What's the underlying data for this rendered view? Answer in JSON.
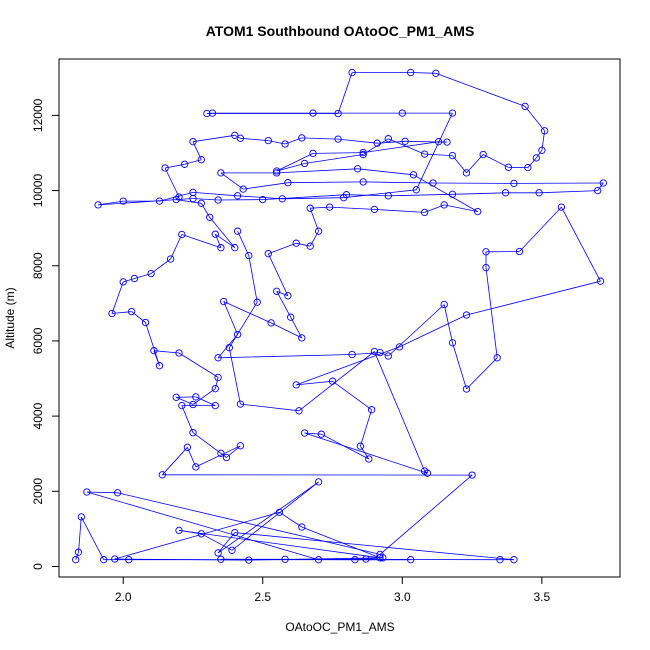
{
  "chart_data": {
    "type": "line",
    "title": "ATOM1 Southbound OAtoOC_PM1_AMS",
    "xlabel": "OAtoOC_PM1_AMS",
    "ylabel": "Altitude (m)",
    "xlim": [
      1.77,
      3.78
    ],
    "ylim": [
      -280,
      13500
    ],
    "x_ticks": [
      2.0,
      2.5,
      3.0,
      3.5
    ],
    "x_tick_labels": [
      "2.0",
      "2.5",
      "3.0",
      "3.5"
    ],
    "y_ticks": [
      0,
      2000,
      4000,
      6000,
      8000,
      10000,
      12000
    ],
    "y_tick_labels": [
      "0",
      "2000",
      "4000",
      "6000",
      "8000",
      "10000",
      "12000"
    ],
    "grid": false,
    "legend": "none",
    "series_color": "#0000ff",
    "marker": "open-circle",
    "series": [
      {
        "points": [
          [
            1.83,
            180
          ],
          [
            1.84,
            380
          ],
          [
            1.85,
            1320
          ],
          [
            1.93,
            180
          ],
          [
            2.02,
            180
          ],
          [
            3.03,
            180
          ],
          [
            2.83,
            180
          ],
          [
            2.35,
            190
          ],
          [
            2.58,
            190
          ],
          [
            3.35,
            180
          ],
          [
            3.4,
            180
          ],
          [
            2.4,
            900
          ],
          [
            2.34,
            360
          ],
          [
            2.7,
            2250
          ],
          [
            2.39,
            430
          ],
          [
            2.28,
            870
          ],
          [
            2.2,
            960
          ],
          [
            2.92,
            230
          ],
          [
            2.64,
            1050
          ],
          [
            2.56,
            1440
          ],
          [
            1.97,
            200
          ],
          [
            2.45,
            170
          ],
          [
            2.93,
            230
          ],
          [
            2.87,
            200
          ],
          [
            2.7,
            180
          ],
          [
            1.87,
            1980
          ],
          [
            1.98,
            1960
          ],
          [
            2.92,
            320
          ],
          [
            3.25,
            2430
          ],
          [
            2.14,
            2440
          ],
          [
            2.23,
            3170
          ],
          [
            2.26,
            2650
          ],
          [
            2.42,
            3210
          ],
          [
            2.37,
            2900
          ],
          [
            2.35,
            3010
          ],
          [
            2.25,
            3560
          ],
          [
            2.21,
            4280
          ],
          [
            2.33,
            4280
          ],
          [
            2.26,
            4510
          ],
          [
            2.19,
            4500
          ],
          [
            2.25,
            4310
          ],
          [
            2.33,
            4730
          ],
          [
            2.34,
            5030
          ],
          [
            2.2,
            5680
          ],
          [
            2.11,
            5740
          ],
          [
            2.13,
            5340
          ],
          [
            2.08,
            6490
          ],
          [
            2.03,
            6780
          ],
          [
            1.96,
            6730
          ],
          [
            2.0,
            7570
          ],
          [
            2.04,
            7660
          ],
          [
            2.1,
            7790
          ],
          [
            2.17,
            8180
          ],
          [
            2.21,
            8830
          ],
          [
            2.35,
            8480
          ],
          [
            2.33,
            8840
          ],
          [
            2.4,
            8480
          ],
          [
            2.31,
            9290
          ],
          [
            2.28,
            9660
          ],
          [
            2.19,
            9760
          ],
          [
            2.2,
            9830
          ],
          [
            2.15,
            10600
          ],
          [
            2.22,
            10700
          ],
          [
            2.28,
            10820
          ],
          [
            2.25,
            11300
          ],
          [
            2.4,
            11470
          ],
          [
            2.42,
            11390
          ],
          [
            2.52,
            11330
          ],
          [
            2.58,
            11240
          ],
          [
            2.64,
            11400
          ],
          [
            2.77,
            11370
          ],
          [
            2.91,
            11260
          ],
          [
            3.01,
            11310
          ],
          [
            3.16,
            11290
          ],
          [
            3.13,
            11300
          ],
          [
            2.86,
            11010
          ],
          [
            2.68,
            10990
          ],
          [
            2.55,
            10520
          ],
          [
            2.65,
            10720
          ],
          [
            2.86,
            10960
          ],
          [
            2.95,
            11380
          ],
          [
            3.08,
            10970
          ],
          [
            3.18,
            10930
          ],
          [
            3.23,
            10470
          ],
          [
            3.29,
            10960
          ],
          [
            3.38,
            10620
          ],
          [
            3.45,
            10610
          ],
          [
            3.48,
            10870
          ],
          [
            3.5,
            11070
          ],
          [
            3.51,
            11590
          ],
          [
            3.44,
            12240
          ],
          [
            3.12,
            13120
          ],
          [
            3.03,
            13140
          ],
          [
            2.82,
            13140
          ],
          [
            2.77,
            12050
          ],
          [
            2.3,
            12050
          ],
          [
            2.32,
            12060
          ],
          [
            2.68,
            12060
          ],
          [
            3.0,
            12060
          ],
          [
            3.18,
            12060
          ],
          [
            3.05,
            10020
          ],
          [
            2.79,
            9810
          ],
          [
            2.57,
            9780
          ],
          [
            2.41,
            9860
          ],
          [
            2.25,
            9950
          ],
          [
            2.13,
            9720
          ],
          [
            2.0,
            9720
          ],
          [
            1.91,
            9620
          ],
          [
            2.25,
            9790
          ],
          [
            2.34,
            9750
          ],
          [
            2.5,
            9760
          ],
          [
            2.8,
            9890
          ],
          [
            2.95,
            9860
          ],
          [
            3.18,
            9900
          ],
          [
            3.37,
            9940
          ],
          [
            3.49,
            9940
          ],
          [
            3.7,
            10000
          ],
          [
            3.72,
            10200
          ],
          [
            3.4,
            10190
          ],
          [
            3.11,
            10200
          ],
          [
            2.86,
            10230
          ],
          [
            2.59,
            10210
          ],
          [
            2.43,
            10040
          ],
          [
            2.35,
            10470
          ],
          [
            2.55,
            10470
          ],
          [
            2.84,
            10580
          ],
          [
            3.04,
            10420
          ],
          [
            3.27,
            9440
          ],
          [
            3.15,
            9620
          ],
          [
            3.08,
            9420
          ],
          [
            2.9,
            9500
          ],
          [
            2.74,
            9560
          ],
          [
            2.67,
            9530
          ],
          [
            2.7,
            8920
          ],
          [
            2.67,
            8520
          ],
          [
            2.62,
            8600
          ],
          [
            2.52,
            8320
          ],
          [
            2.59,
            7200
          ],
          [
            2.55,
            7320
          ],
          [
            2.6,
            6630
          ],
          [
            2.64,
            6080
          ],
          [
            2.53,
            6480
          ],
          [
            2.36,
            7050
          ],
          [
            2.41,
            6170
          ],
          [
            2.34,
            5550
          ],
          [
            2.82,
            5640
          ],
          [
            2.92,
            5690
          ],
          [
            2.95,
            5600
          ],
          [
            3.15,
            6970
          ],
          [
            3.18,
            5950
          ],
          [
            3.23,
            4720
          ],
          [
            3.34,
            5550
          ],
          [
            3.3,
            7950
          ],
          [
            3.3,
            8370
          ],
          [
            3.42,
            8380
          ],
          [
            3.57,
            9560
          ],
          [
            3.71,
            7590
          ],
          [
            3.23,
            6690
          ],
          [
            2.99,
            5840
          ],
          [
            2.62,
            4830
          ],
          [
            2.75,
            4930
          ],
          [
            2.89,
            4170
          ],
          [
            2.85,
            3200
          ],
          [
            2.88,
            2860
          ],
          [
            2.71,
            3520
          ],
          [
            2.65,
            3550
          ],
          [
            3.09,
            2480
          ],
          [
            3.08,
            2540
          ],
          [
            2.9,
            5720
          ],
          [
            2.63,
            4140
          ],
          [
            2.42,
            4320
          ],
          [
            2.38,
            5820
          ],
          [
            2.48,
            7030
          ],
          [
            2.45,
            8270
          ],
          [
            2.41,
            8920
          ]
        ]
      }
    ]
  }
}
